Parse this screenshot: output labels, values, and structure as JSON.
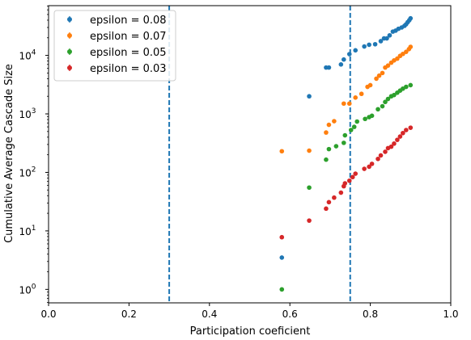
{
  "chart_data": {
    "type": "scatter",
    "title": "",
    "xlabel": "Participation coeficient",
    "ylabel": "Cumulative Average Cascade Size",
    "xlim": [
      0.0,
      1.0
    ],
    "ylog": true,
    "ylim_log10": [
      -0.23,
      4.85
    ],
    "x_ticks": [
      {
        "value": 0.0,
        "label": "0.0"
      },
      {
        "value": 0.2,
        "label": "0.2"
      },
      {
        "value": 0.4,
        "label": "0.4"
      },
      {
        "value": 0.6,
        "label": "0.6"
      },
      {
        "value": 0.8,
        "label": "0.8"
      },
      {
        "value": 1.0,
        "label": "1.0"
      }
    ],
    "y_ticks": [
      {
        "exp": 0,
        "base": "10",
        "sup": "0"
      },
      {
        "exp": 1,
        "base": "10",
        "sup": "1"
      },
      {
        "exp": 2,
        "base": "10",
        "sup": "2"
      },
      {
        "exp": 3,
        "base": "10",
        "sup": "3"
      },
      {
        "exp": 4,
        "base": "10",
        "sup": "4"
      }
    ],
    "vlines": [
      0.3,
      0.75
    ],
    "vline_color": "#1f77b4",
    "grid": false,
    "legend_position": "upper-left",
    "series": [
      {
        "name": "epsilon = 0.08",
        "color": "#1f77b4",
        "points": [
          [
            0.58,
            3.5
          ],
          [
            0.648,
            2000
          ],
          [
            0.69,
            6200
          ],
          [
            0.697,
            6200
          ],
          [
            0.727,
            7000
          ],
          [
            0.734,
            8500
          ],
          [
            0.748,
            10500
          ],
          [
            0.763,
            12200
          ],
          [
            0.785,
            14200
          ],
          [
            0.797,
            15200
          ],
          [
            0.812,
            15500
          ],
          [
            0.826,
            17500
          ],
          [
            0.834,
            19500
          ],
          [
            0.841,
            19500
          ],
          [
            0.848,
            22000
          ],
          [
            0.856,
            25500
          ],
          [
            0.863,
            26500
          ],
          [
            0.87,
            28500
          ],
          [
            0.878,
            30000
          ],
          [
            0.885,
            32000
          ],
          [
            0.889,
            34000
          ],
          [
            0.893,
            37000
          ],
          [
            0.897,
            40000
          ],
          [
            0.9,
            43000
          ]
        ]
      },
      {
        "name": "epsilon = 0.07",
        "color": "#ff7f0e",
        "points": [
          [
            0.58,
            230
          ],
          [
            0.648,
            235
          ],
          [
            0.69,
            480
          ],
          [
            0.697,
            650
          ],
          [
            0.71,
            750
          ],
          [
            0.734,
            1500
          ],
          [
            0.748,
            1500
          ],
          [
            0.763,
            1900
          ],
          [
            0.778,
            2200
          ],
          [
            0.793,
            2900
          ],
          [
            0.8,
            3100
          ],
          [
            0.815,
            4000
          ],
          [
            0.822,
            4500
          ],
          [
            0.83,
            5000
          ],
          [
            0.837,
            6200
          ],
          [
            0.844,
            6700
          ],
          [
            0.852,
            7500
          ],
          [
            0.859,
            8200
          ],
          [
            0.867,
            8800
          ],
          [
            0.874,
            9800
          ],
          [
            0.881,
            10600
          ],
          [
            0.889,
            11500
          ],
          [
            0.896,
            12800
          ],
          [
            0.9,
            14000
          ]
        ]
      },
      {
        "name": "epsilon = 0.05",
        "color": "#2ca02c",
        "points": [
          [
            0.58,
            1.0
          ],
          [
            0.648,
            55
          ],
          [
            0.69,
            165
          ],
          [
            0.697,
            250
          ],
          [
            0.715,
            280
          ],
          [
            0.734,
            320
          ],
          [
            0.737,
            430
          ],
          [
            0.752,
            530
          ],
          [
            0.76,
            600
          ],
          [
            0.767,
            740
          ],
          [
            0.787,
            820
          ],
          [
            0.797,
            880
          ],
          [
            0.804,
            930
          ],
          [
            0.819,
            1200
          ],
          [
            0.83,
            1350
          ],
          [
            0.837,
            1600
          ],
          [
            0.844,
            1800
          ],
          [
            0.852,
            2000
          ],
          [
            0.859,
            2100
          ],
          [
            0.867,
            2300
          ],
          [
            0.874,
            2500
          ],
          [
            0.881,
            2700
          ],
          [
            0.889,
            2900
          ],
          [
            0.9,
            3100
          ]
        ]
      },
      {
        "name": "epsilon = 0.03",
        "color": "#d62728",
        "points": [
          [
            0.58,
            7.8
          ],
          [
            0.648,
            15
          ],
          [
            0.69,
            24
          ],
          [
            0.697,
            31
          ],
          [
            0.71,
            37
          ],
          [
            0.727,
            45
          ],
          [
            0.734,
            58
          ],
          [
            0.737,
            65
          ],
          [
            0.748,
            72
          ],
          [
            0.756,
            83
          ],
          [
            0.763,
            95
          ],
          [
            0.785,
            115
          ],
          [
            0.797,
            125
          ],
          [
            0.804,
            140
          ],
          [
            0.819,
            170
          ],
          [
            0.826,
            195
          ],
          [
            0.837,
            225
          ],
          [
            0.844,
            260
          ],
          [
            0.852,
            275
          ],
          [
            0.859,
            310
          ],
          [
            0.867,
            360
          ],
          [
            0.874,
            410
          ],
          [
            0.881,
            470
          ],
          [
            0.889,
            530
          ],
          [
            0.9,
            580
          ]
        ]
      }
    ]
  }
}
